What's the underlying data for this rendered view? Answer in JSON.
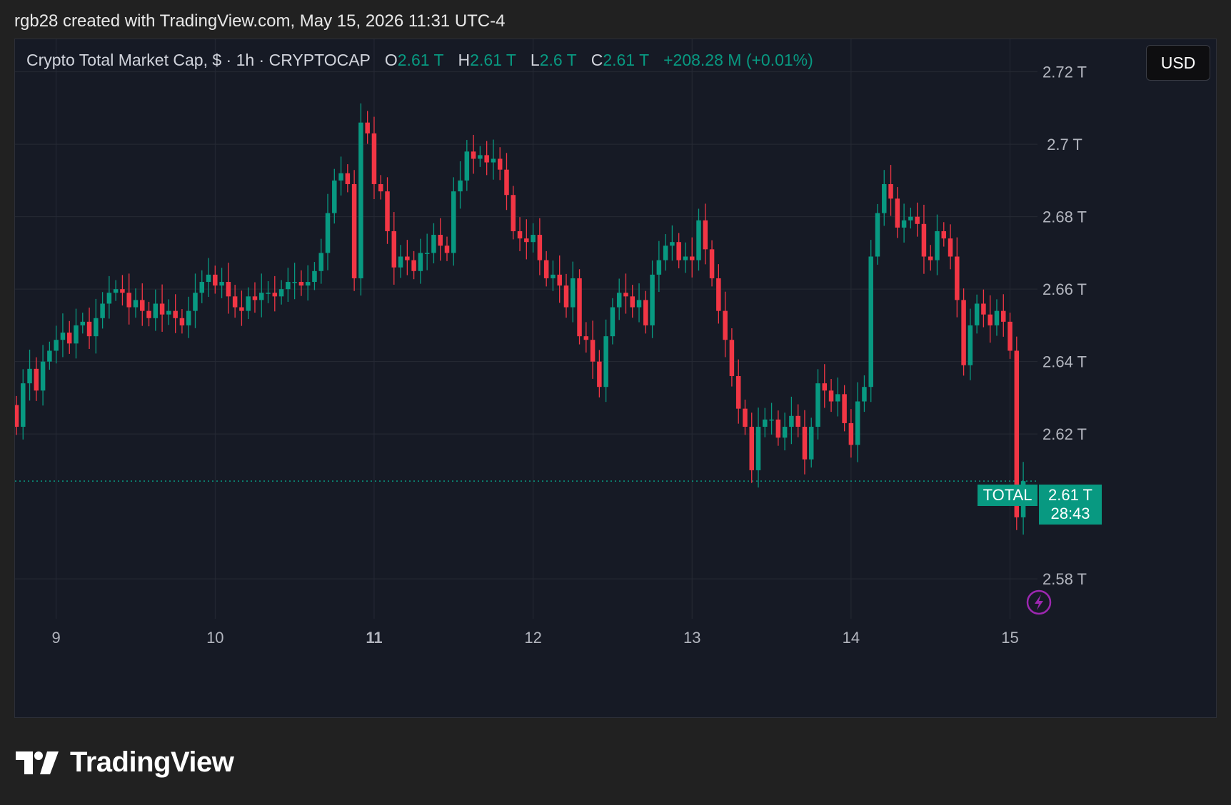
{
  "header": {
    "attribution": "rgb28 created with TradingView.com, May 15, 2026 11:31 UTC-4"
  },
  "legend": {
    "symbol_desc": "Crypto Total Market Cap, $ · 1h · CRYPTOCAP",
    "open_label": "O",
    "open_value": "2.61 T",
    "high_label": "H",
    "high_value": "2.61 T",
    "low_label": "L",
    "low_value": "2.6 T",
    "close_label": "C",
    "close_value": "2.61 T",
    "change": "+208.28 M (+0.01%)"
  },
  "toolbar": {
    "currency": "USD"
  },
  "footer": {
    "brand": "TradingView"
  },
  "colors": {
    "up": "#089981",
    "down": "#f23645",
    "background": "#161a25",
    "grid": "#262a35",
    "axis_text": "#b2b5be",
    "price_line": "#089981",
    "lightning": "#9c27b0"
  },
  "icons": {
    "logo": "tradingview-logo-icon",
    "alert": "lightning-icon"
  },
  "chart_data": {
    "type": "candlestick",
    "title": "Crypto Total Market Cap, $",
    "interval": "1h",
    "exchange": "CRYPTOCAP",
    "x_ticks": [
      "9",
      "10",
      "11",
      "12",
      "13",
      "14",
      "15"
    ],
    "y_ticks": [
      "2.72 T",
      "2.7 T",
      "2.68 T",
      "2.66 T",
      "2.64 T",
      "2.62 T",
      "2.58 T"
    ],
    "y_tick_values": [
      2.72,
      2.7,
      2.68,
      2.66,
      2.64,
      2.62,
      2.58
    ],
    "ylim": [
      2.569,
      2.729
    ],
    "grid": true,
    "last_price_label": "2.61 T",
    "countdown": "28:43",
    "series_tag": "TOTAL",
    "last_price": 2.607,
    "unit": "T",
    "closes": [
      2.622,
      2.634,
      2.638,
      2.632,
      2.64,
      2.643,
      2.646,
      2.648,
      2.645,
      2.65,
      2.651,
      2.647,
      2.652,
      2.656,
      2.659,
      2.66,
      2.659,
      2.655,
      2.657,
      2.654,
      2.652,
      2.656,
      2.653,
      2.654,
      2.652,
      2.65,
      2.654,
      2.659,
      2.662,
      2.664,
      2.661,
      2.662,
      2.658,
      2.655,
      2.654,
      2.658,
      2.657,
      2.659,
      2.659,
      2.658,
      2.66,
      2.662,
      2.662,
      2.661,
      2.662,
      2.665,
      2.67,
      2.681,
      2.69,
      2.692,
      2.689,
      2.663,
      2.706,
      2.703,
      2.689,
      2.687,
      2.676,
      2.666,
      2.669,
      2.668,
      2.665,
      2.67,
      2.67,
      2.675,
      2.672,
      2.67,
      2.687,
      2.69,
      2.698,
      2.696,
      2.697,
      2.695,
      2.696,
      2.693,
      2.686,
      2.676,
      2.674,
      2.673,
      2.675,
      2.668,
      2.663,
      2.664,
      2.661,
      2.655,
      2.663,
      2.647,
      2.646,
      2.64,
      2.633,
      2.647,
      2.655,
      2.659,
      2.658,
      2.655,
      2.657,
      2.65,
      2.664,
      2.668,
      2.672,
      2.673,
      2.668,
      2.669,
      2.668,
      2.679,
      2.671,
      2.663,
      2.654,
      2.646,
      2.636,
      2.627,
      2.622,
      2.61,
      2.622,
      2.624,
      2.624,
      2.619,
      2.622,
      2.625,
      2.622,
      2.613,
      2.622,
      2.634,
      2.632,
      2.629,
      2.631,
      2.623,
      2.617,
      2.629,
      2.633,
      2.669,
      2.681,
      2.689,
      2.685,
      2.677,
      2.679,
      2.68,
      2.678,
      2.669,
      2.668,
      2.676,
      2.674,
      2.669,
      2.657,
      2.639,
      2.65,
      2.656,
      2.653,
      2.65,
      2.654,
      2.651,
      2.643,
      2.597,
      2.607
    ]
  }
}
